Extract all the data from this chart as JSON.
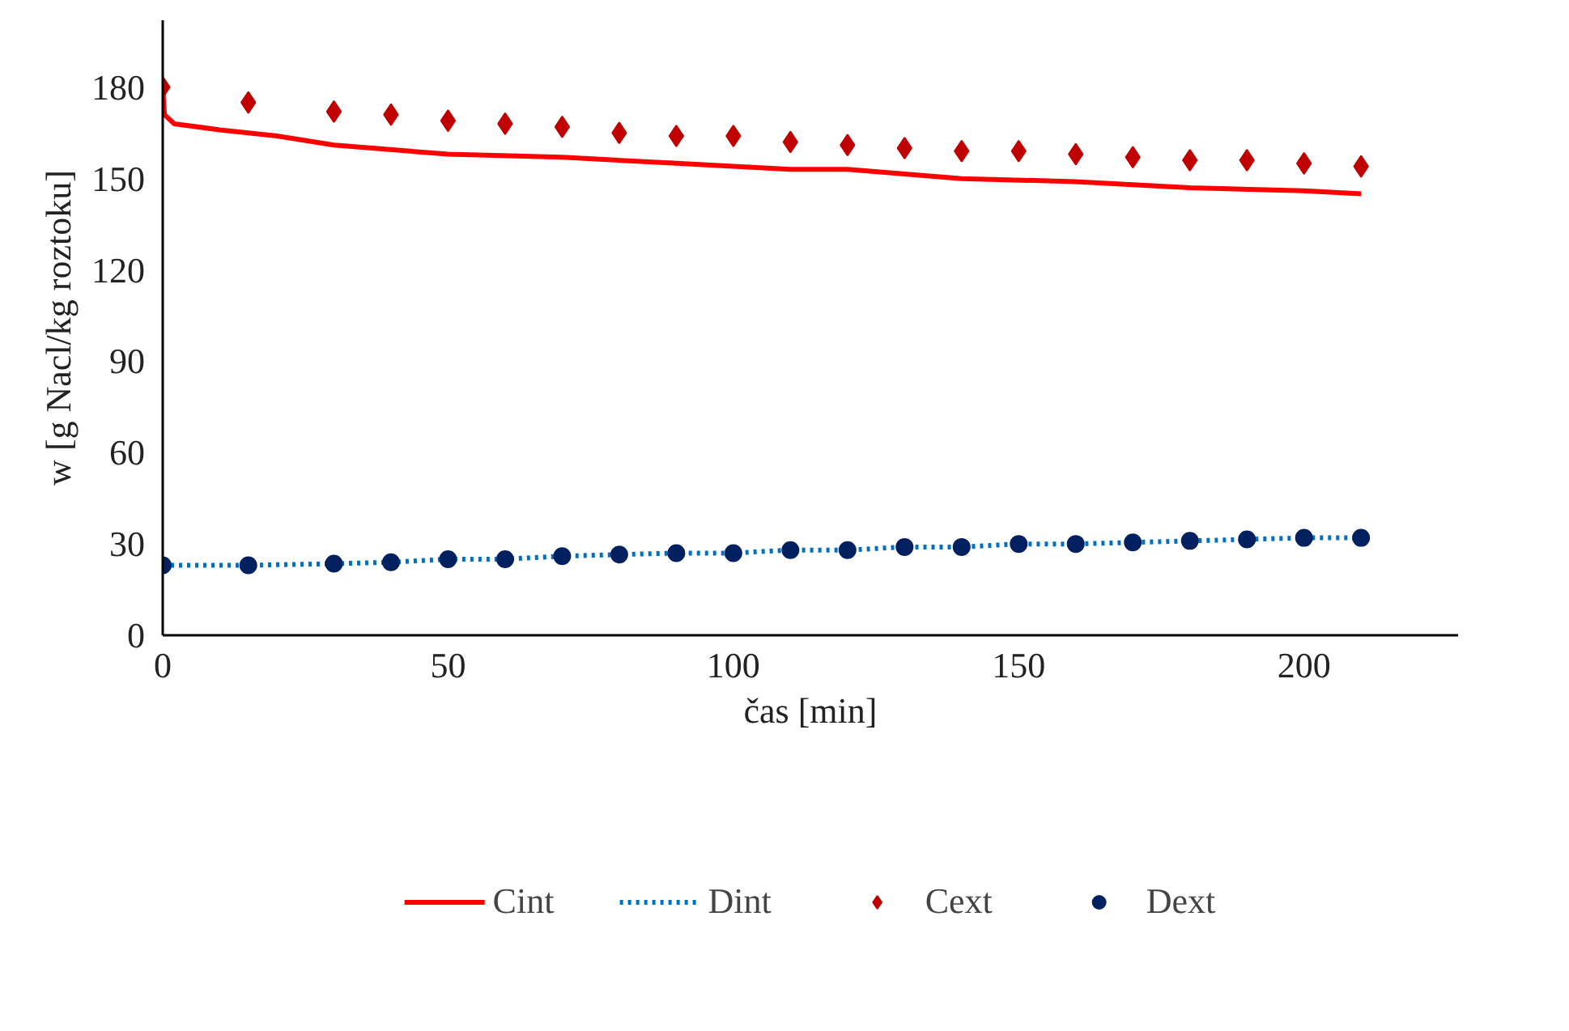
{
  "chart_data": {
    "type": "line",
    "xlabel": "čas [min]",
    "ylabel": "w [g Nacl/kg roztoku]",
    "xlim": [
      0,
      227
    ],
    "xticks": [
      0,
      50,
      100,
      150,
      200
    ],
    "ylim": [
      0,
      202
    ],
    "yticks": [
      0,
      30,
      60,
      90,
      120,
      150,
      180
    ],
    "grid": false,
    "legend": "bottom",
    "series": [
      {
        "name": "Cint",
        "line_style": "solid",
        "color": "#ff0000",
        "x": [
          0,
          0.3,
          2,
          10,
          20,
          30,
          50,
          70,
          90,
          110,
          120,
          140,
          160,
          180,
          200,
          210
        ],
        "values": [
          180,
          171,
          168,
          166,
          164,
          161,
          158,
          157,
          155,
          153,
          153,
          150,
          149,
          147,
          146,
          145
        ]
      },
      {
        "name": "Dint",
        "line_style": "dotted",
        "color": "#0070c0",
        "x": [
          0,
          15,
          30,
          40,
          50,
          60,
          70,
          80,
          90,
          100,
          110,
          120,
          130,
          140,
          150,
          160,
          170,
          180,
          190,
          200,
          210
        ],
        "values": [
          23,
          23,
          23.5,
          24,
          25,
          25,
          26,
          26.5,
          27,
          27,
          28,
          28,
          29,
          29,
          30,
          30,
          30.5,
          31,
          31.5,
          32,
          32
        ]
      },
      {
        "name": "Cext",
        "type": "scatter",
        "marker": "diamond",
        "color": "#c00000",
        "x": [
          0,
          15,
          30,
          40,
          50,
          60,
          70,
          80,
          90,
          100,
          110,
          120,
          130,
          140,
          150,
          160,
          170,
          180,
          190,
          200,
          210
        ],
        "values": [
          180,
          175,
          172,
          171,
          169,
          168,
          167,
          165,
          164,
          164,
          162,
          161,
          160,
          159,
          159,
          158,
          157,
          156,
          156,
          155,
          154
        ]
      },
      {
        "name": "Dext",
        "type": "scatter",
        "marker": "circle",
        "color": "#002060",
        "x": [
          0,
          15,
          30,
          40,
          50,
          60,
          70,
          80,
          90,
          100,
          110,
          120,
          130,
          140,
          150,
          160,
          170,
          180,
          190,
          200,
          210
        ],
        "values": [
          23,
          23,
          23.5,
          24,
          25,
          25,
          26,
          26.5,
          27,
          27,
          28,
          28,
          29,
          29,
          30,
          30,
          30.5,
          31,
          31.5,
          32,
          32
        ]
      }
    ]
  }
}
